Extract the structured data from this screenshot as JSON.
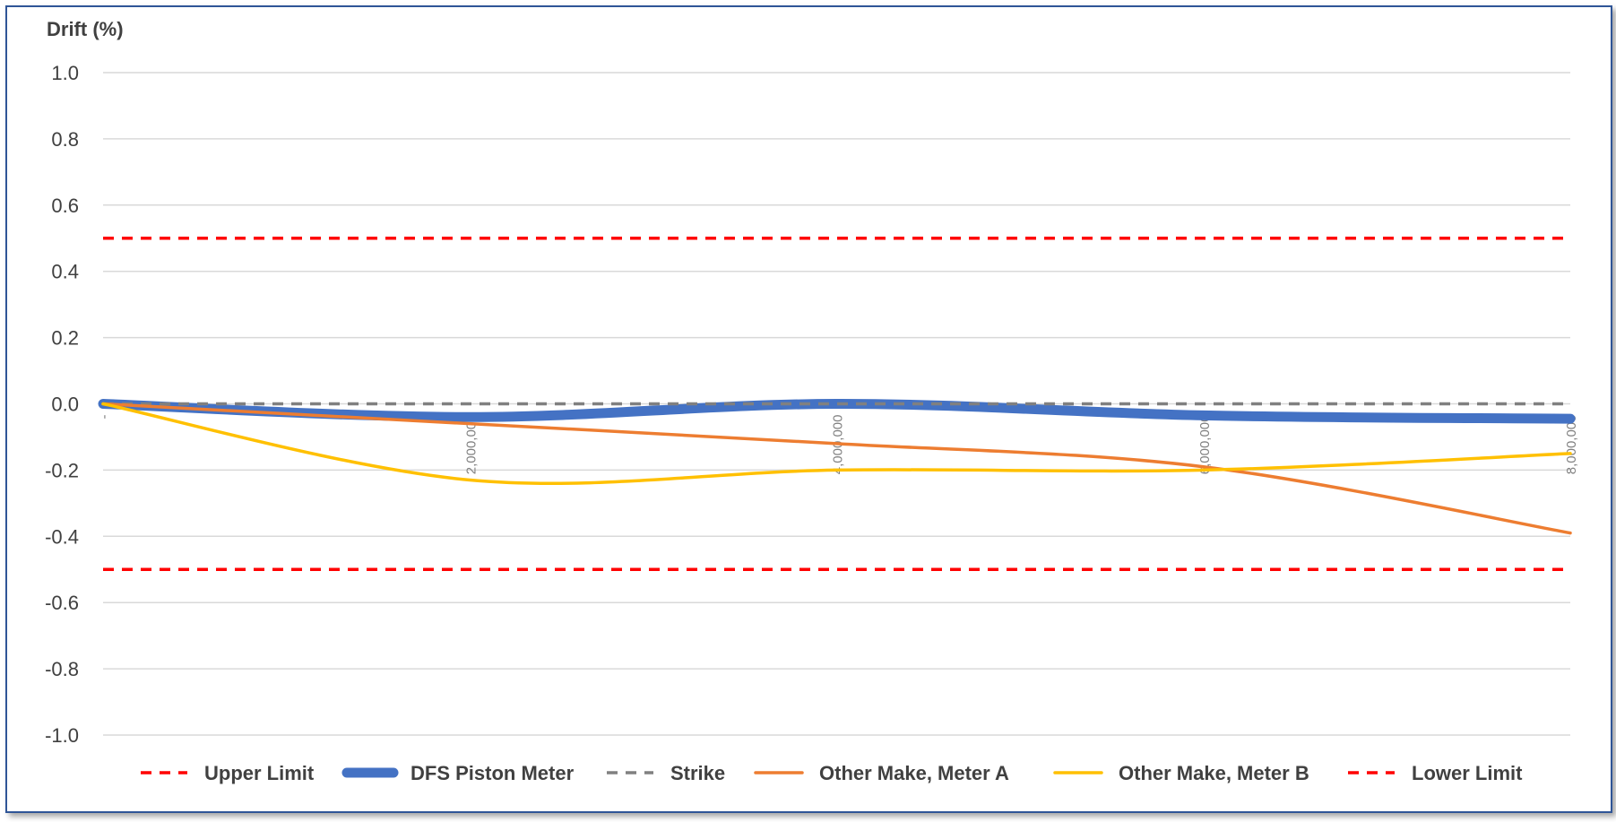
{
  "chart_data": {
    "type": "line",
    "ylabel": "Drift (%)",
    "xlabel": "",
    "ylim": [
      -1.0,
      1.0
    ],
    "yticks": [
      1.0,
      0.8,
      0.6,
      0.4,
      0.2,
      0.0,
      -0.2,
      -0.4,
      -0.6,
      -0.8,
      -1.0
    ],
    "ytick_labels": [
      "1.0",
      "0.8",
      "0.6",
      "0.4",
      "0.2",
      "0.0",
      "-0.2",
      "-0.4",
      "-0.6",
      "-0.8",
      "-1.0"
    ],
    "xlim": [
      0,
      8000000
    ],
    "xticks": [
      0,
      2000000,
      4000000,
      6000000,
      8000000
    ],
    "xtick_labels": [
      "-",
      "2,000,000",
      "4,000,000",
      "6,000,000",
      "8,000,000"
    ],
    "grid": true,
    "legend_position": "bottom",
    "series": [
      {
        "name": "Upper Limit",
        "color": "#ff0000",
        "style": "dashed",
        "x": [
          0,
          8000000
        ],
        "y": [
          0.5,
          0.5
        ]
      },
      {
        "name": "DFS Piston Meter",
        "color": "#4472c4",
        "style": "thick",
        "x": [
          0,
          2000000,
          4000000,
          6000000,
          8000000
        ],
        "y": [
          0.0,
          -0.04,
          0.0,
          -0.035,
          -0.045
        ]
      },
      {
        "name": "Strike",
        "color": "#808080",
        "style": "dashed",
        "x": [
          0,
          8000000
        ],
        "y": [
          0.0,
          0.0
        ]
      },
      {
        "name": "Other Make, Meter A",
        "color": "#ed7d31",
        "style": "solid",
        "x": [
          0,
          2000000,
          4000000,
          6000000,
          8000000
        ],
        "y": [
          0.0,
          -0.06,
          -0.12,
          -0.19,
          -0.39
        ]
      },
      {
        "name": "Other Make, Meter B",
        "color": "#ffc000",
        "style": "solid",
        "x": [
          0,
          2000000,
          4000000,
          6000000,
          8000000
        ],
        "y": [
          0.0,
          -0.23,
          -0.2,
          -0.2,
          -0.15
        ]
      },
      {
        "name": "Lower Limit",
        "color": "#ff0000",
        "style": "dashed",
        "x": [
          0,
          8000000
        ],
        "y": [
          -0.5,
          -0.5
        ]
      }
    ]
  }
}
